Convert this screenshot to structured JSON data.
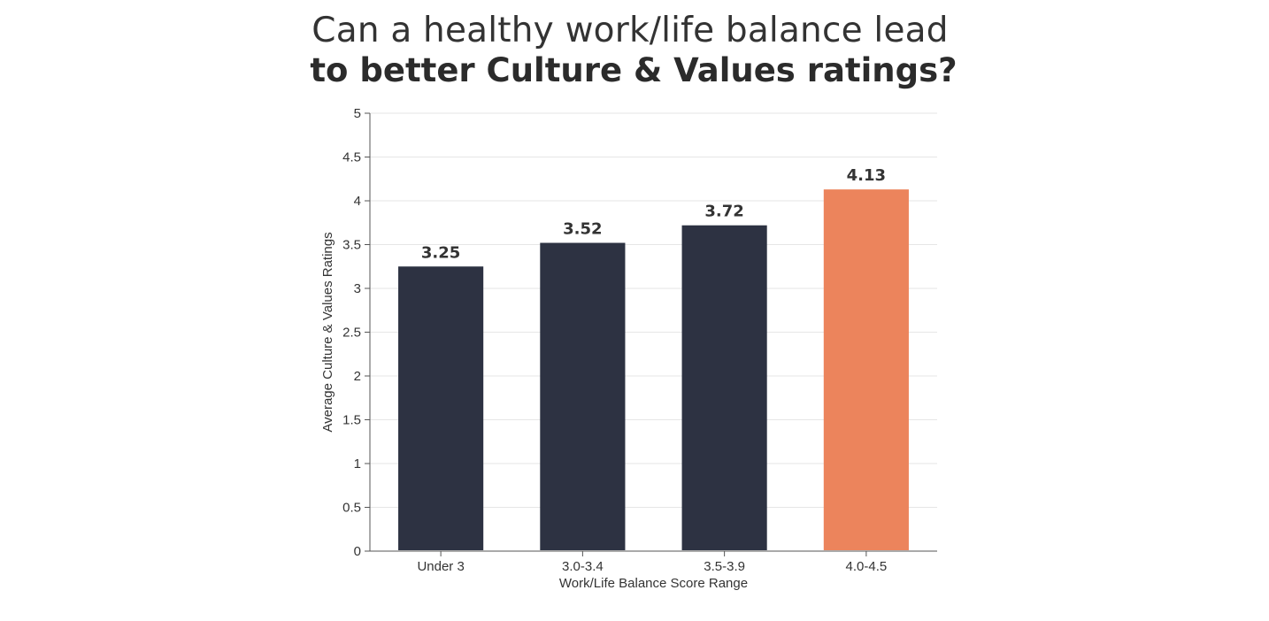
{
  "chart_data": {
    "type": "bar",
    "title_line1": "Can a healthy work/life balance lead",
    "title_line2": "to better Culture & Values ratings?",
    "xlabel": "Work/Life Balance Score Range",
    "ylabel": "Average Culture & Values Ratings",
    "categories": [
      "Under 3",
      "3.0-3.4",
      "3.5-3.9",
      "4.0-4.5"
    ],
    "values": [
      3.25,
      3.52,
      3.72,
      4.13
    ],
    "data_labels": [
      "3.25",
      "3.52",
      "3.72",
      "4.13"
    ],
    "ylim": [
      0,
      5
    ],
    "yticks": [
      0,
      0.5,
      1,
      1.5,
      2,
      2.5,
      3,
      3.5,
      4,
      4.5,
      5
    ],
    "ytick_labels": [
      "0",
      "0.5",
      "1",
      "1.5",
      "2",
      "2.5",
      "3",
      "3.5",
      "4",
      "4.5",
      "5"
    ],
    "grid": true,
    "colors": {
      "default": "#2d3242",
      "highlight": "#ec845c"
    },
    "highlight_index": 3
  }
}
